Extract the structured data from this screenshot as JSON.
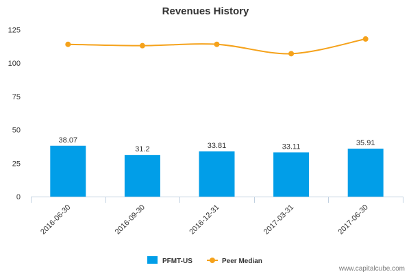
{
  "chart_data": {
    "type": "bar",
    "title": "Revenues History",
    "categories": [
      "2016-06-30",
      "2016-09-30",
      "2016-12-31",
      "2017-03-31",
      "2017-06-30"
    ],
    "series": [
      {
        "name": "PFMT-US",
        "type": "bar",
        "values": [
          38.07,
          31.2,
          33.81,
          33.11,
          35.91
        ],
        "data_labels": [
          "38.07",
          "31.2",
          "33.81",
          "33.11",
          "35.91"
        ]
      },
      {
        "name": "Peer Median",
        "type": "line",
        "values": [
          114,
          113,
          114,
          107,
          118
        ]
      }
    ],
    "yticks": [
      0,
      25,
      50,
      75,
      100,
      125
    ],
    "ylim": [
      0,
      130
    ],
    "grid": false,
    "legend_position": "bottom-center"
  },
  "colors": {
    "bar": "#019ee8",
    "line": "#f5a21b",
    "axis": "#c0d0e0",
    "text": "#333333"
  },
  "credit": "www.capitalcube.com"
}
